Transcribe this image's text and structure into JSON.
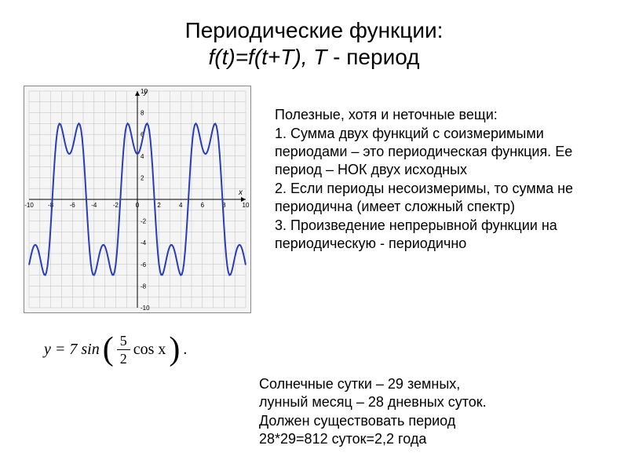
{
  "title": {
    "line1": "Периодические функции:",
    "line2_ital": "f(t)=f(t+T), T",
    "line2_plain": " - период"
  },
  "graph": {
    "type": "line",
    "background_color": "#f5f5f5",
    "grid_color": "#bfbfbf",
    "axis_color": "#000000",
    "curve_color": "#2a3db8",
    "curve_width": 2,
    "xlim": [
      -10,
      10
    ],
    "ylim": [
      -10,
      10
    ],
    "xtick_step": 2,
    "ytick_step": 2,
    "xtick_labels": [
      "-10",
      "-8",
      "-6",
      "-4",
      "-2",
      "0",
      "2",
      "4",
      "6",
      "8",
      "10"
    ],
    "ytick_labels": [
      "-10",
      "-8",
      "-6",
      "-4",
      "-2",
      "",
      "2",
      "4",
      "6",
      "8",
      "10"
    ],
    "tick_fontsize": 8,
    "axis_label_x": "x",
    "axis_label_y": "y",
    "formula_amp": 7,
    "formula_inner": 2.5,
    "points_x_step": 0.1
  },
  "formula": {
    "prefix": "y = 7 sin",
    "frac_num": "5",
    "frac_den": "2",
    "suffix": "cos x",
    "period": "."
  },
  "body": {
    "intro": "Полезные, хотя и неточные вещи:",
    "p1": "1. Сумма двух функций с соизмеримыми периодами – это периодическая функция. Ее период – НОК двух исходных",
    "p2": "2. Если периоды несоизмеримы, то сумма не периодична (имеет сложный  спектр)",
    "p3": "3. Произведение непрерывной функции на периодическую - периодично"
  },
  "footer": {
    "l1": "Солнечные сутки – 29 земных,",
    "l2": "лунный месяц – 28 дневных суток.",
    "l3": "Должен существовать период",
    "l4": "28*29=812 суток=2,2 года"
  }
}
